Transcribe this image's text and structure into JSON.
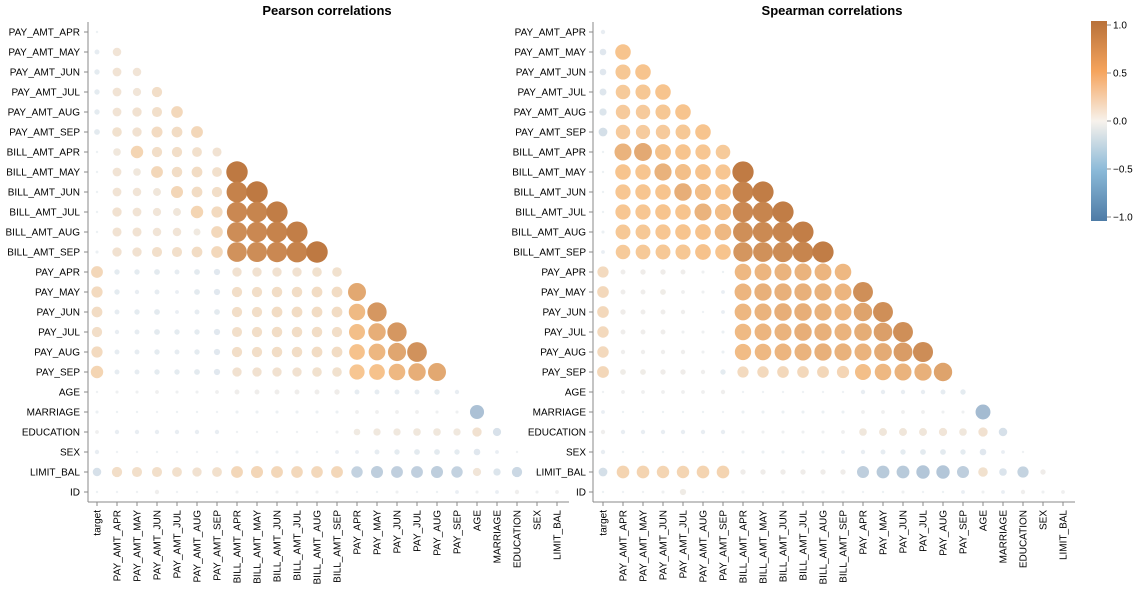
{
  "chart_data": {
    "type": "heatmap",
    "variables": [
      "target",
      "PAY_AMT_APR",
      "PAY_AMT_MAY",
      "PAY_AMT_JUN",
      "PAY_AMT_JUL",
      "PAY_AMT_AUG",
      "PAY_AMT_SEP",
      "BILL_AMT_APR",
      "BILL_AMT_MAY",
      "BILL_AMT_JUN",
      "BILL_AMT_JUL",
      "BILL_AMT_AUG",
      "BILL_AMT_SEP",
      "PAY_APR",
      "PAY_MAY",
      "PAY_JUN",
      "PAY_JUL",
      "PAY_AUG",
      "PAY_SEP",
      "AGE",
      "MARRIAGE",
      "EDUCATION",
      "SEX",
      "LIMIT_BAL",
      "ID"
    ],
    "y_order_top_to_bottom": [
      "PAY_AMT_APR",
      "PAY_AMT_MAY",
      "PAY_AMT_JUN",
      "PAY_AMT_JUL",
      "PAY_AMT_AUG",
      "PAY_AMT_SEP",
      "BILL_AMT_APR",
      "BILL_AMT_MAY",
      "BILL_AMT_JUN",
      "BILL_AMT_JUL",
      "BILL_AMT_AUG",
      "BILL_AMT_SEP",
      "PAY_APR",
      "PAY_MAY",
      "PAY_JUN",
      "PAY_JUL",
      "PAY_AUG",
      "PAY_SEP",
      "AGE",
      "MARRIAGE",
      "EDUCATION",
      "SEX",
      "LIMIT_BAL",
      "ID"
    ],
    "x_order_left_to_right": [
      "target",
      "PAY_AMT_APR",
      "PAY_AMT_MAY",
      "PAY_AMT_JUN",
      "PAY_AMT_JUL",
      "PAY_AMT_AUG",
      "PAY_AMT_SEP",
      "BILL_AMT_APR",
      "BILL_AMT_MAY",
      "BILL_AMT_JUN",
      "BILL_AMT_JUL",
      "BILL_AMT_AUG",
      "BILL_AMT_SEP",
      "PAY_APR",
      "PAY_MAY",
      "PAY_JUN",
      "PAY_JUL",
      "PAY_AUG",
      "PAY_SEP",
      "AGE",
      "MARRIAGE",
      "EDUCATION",
      "SEX",
      "LIMIT_BAL"
    ],
    "value_range": [
      -1,
      1
    ],
    "colorbar_ticks": [
      "1.0",
      "0.5",
      "0.0",
      "−0.5",
      "−1.0"
    ],
    "colorscale": [
      "#4e7ba6",
      "#e8f1f8",
      "#f5a35c",
      "#b8713a"
    ],
    "panels": [
      {
        "title": "Pearson correlations",
        "rows": [
          [
            -0.01
          ],
          [
            -0.05,
            0.15
          ],
          [
            -0.06,
            0.16,
            0.15
          ],
          [
            -0.06,
            0.16,
            0.14,
            0.22
          ],
          [
            -0.06,
            0.16,
            0.18,
            0.21,
            0.28
          ],
          [
            -0.07,
            0.19,
            0.18,
            0.25,
            0.24,
            0.29
          ],
          [
            -0.01,
            0.12,
            0.32,
            0.22,
            0.22,
            0.2,
            0.17
          ],
          [
            -0.01,
            0.16,
            0.12,
            0.29,
            0.23,
            0.24,
            0.2,
            0.95
          ],
          [
            -0.01,
            0.16,
            0.15,
            0.13,
            0.3,
            0.24,
            0.22,
            0.9,
            0.95
          ],
          [
            -0.01,
            0.18,
            0.16,
            0.14,
            0.13,
            0.32,
            0.26,
            0.86,
            0.88,
            0.93
          ],
          [
            -0.01,
            0.17,
            0.17,
            0.15,
            0.15,
            0.1,
            0.28,
            0.83,
            0.86,
            0.89,
            0.92
          ],
          [
            -0.02,
            0.18,
            0.18,
            0.21,
            0.21,
            0.24,
            0.28,
            0.8,
            0.83,
            0.86,
            0.89,
            0.95
          ],
          [
            0.29,
            -0.06,
            -0.06,
            -0.07,
            -0.05,
            -0.07,
            -0.08,
            0.18,
            0.18,
            0.18,
            0.18,
            0.19,
            0.19
          ],
          [
            0.26,
            -0.06,
            -0.04,
            -0.05,
            -0.03,
            -0.07,
            -0.08,
            0.22,
            0.22,
            0.23,
            0.23,
            0.24,
            0.24,
            0.67
          ],
          [
            0.24,
            -0.05,
            -0.06,
            -0.07,
            -0.03,
            -0.05,
            -0.07,
            0.22,
            0.22,
            0.24,
            0.24,
            0.24,
            0.24,
            0.56,
            0.77
          ],
          [
            0.22,
            -0.04,
            -0.05,
            -0.07,
            -0.06,
            -0.06,
            -0.08,
            0.21,
            0.22,
            0.23,
            0.23,
            0.23,
            0.22,
            0.53,
            0.63,
            0.77
          ],
          [
            0.26,
            -0.05,
            -0.05,
            -0.06,
            -0.05,
            -0.06,
            -0.08,
            0.22,
            0.22,
            0.23,
            0.23,
            0.24,
            0.24,
            0.51,
            0.58,
            0.68,
            0.8
          ],
          [
            0.32,
            -0.05,
            -0.05,
            -0.06,
            -0.06,
            -0.07,
            -0.08,
            0.18,
            0.18,
            0.18,
            0.18,
            0.19,
            0.19,
            0.48,
            0.51,
            0.57,
            0.63,
            0.67
          ],
          [
            0.01,
            0.02,
            0.02,
            0.03,
            0.02,
            0.02,
            0.03,
            0.05,
            0.05,
            0.05,
            0.05,
            0.05,
            0.06,
            -0.05,
            -0.05,
            -0.05,
            -0.05,
            -0.06,
            -0.04
          ],
          [
            -0.02,
            -0.01,
            -0.01,
            -0.0,
            -0.01,
            -0.01,
            -0.0,
            -0.02,
            -0.02,
            -0.02,
            -0.02,
            -0.02,
            -0.02,
            0.03,
            0.03,
            0.03,
            0.03,
            0.02,
            0.02,
            -0.41
          ],
          [
            0.03,
            -0.04,
            -0.04,
            -0.04,
            -0.04,
            -0.04,
            -0.04,
            0.01,
            0.01,
            0.01,
            0.01,
            0.01,
            0.02,
            0.09,
            0.11,
            0.11,
            0.12,
            0.12,
            0.11,
            0.18,
            -0.14
          ],
          [
            -0.04,
            -0.0,
            -0.0,
            -0.01,
            -0.0,
            -0.0,
            -0.0,
            -0.02,
            -0.02,
            -0.02,
            -0.02,
            -0.01,
            -0.03,
            -0.03,
            -0.05,
            -0.06,
            -0.07,
            -0.07,
            -0.06,
            -0.09,
            -0.03,
            0.01
          ],
          [
            -0.15,
            0.22,
            0.21,
            0.21,
            0.2,
            0.18,
            0.2,
            0.29,
            0.3,
            0.29,
            0.28,
            0.28,
            0.29,
            -0.27,
            -0.3,
            -0.29,
            -0.29,
            -0.3,
            -0.27,
            0.14,
            -0.11,
            -0.22,
            0.02
          ],
          [
            -0.01,
            0.0,
            0.01,
            0.04,
            0.0,
            0.01,
            0.01,
            0.02,
            0.01,
            0.02,
            0.02,
            0.02,
            0.02,
            -0.0,
            -0.01,
            0.02,
            -0.0,
            -0.01,
            -0.03,
            0.02,
            -0.03,
            0.04,
            0.02,
            0.03
          ]
        ]
      },
      {
        "title": "Spearman correlations",
        "rows": [
          [
            -0.04
          ],
          [
            -0.09,
            0.5
          ],
          [
            -0.09,
            0.47,
            0.5
          ],
          [
            -0.1,
            0.44,
            0.47,
            0.5
          ],
          [
            -0.11,
            0.43,
            0.43,
            0.47,
            0.5
          ],
          [
            -0.16,
            0.43,
            0.42,
            0.43,
            0.46,
            0.5
          ],
          [
            -0.01,
            0.6,
            0.66,
            0.52,
            0.5,
            0.48,
            0.44
          ],
          [
            -0.01,
            0.5,
            0.49,
            0.61,
            0.53,
            0.51,
            0.48,
            0.94
          ],
          [
            -0.01,
            0.48,
            0.49,
            0.5,
            0.63,
            0.54,
            0.51,
            0.89,
            0.93
          ],
          [
            -0.01,
            0.48,
            0.48,
            0.5,
            0.5,
            0.6,
            0.54,
            0.86,
            0.88,
            0.93
          ],
          [
            -0.02,
            0.46,
            0.46,
            0.48,
            0.5,
            0.51,
            0.57,
            0.82,
            0.85,
            0.88,
            0.92
          ],
          [
            -0.03,
            0.44,
            0.45,
            0.46,
            0.47,
            0.51,
            0.5,
            0.78,
            0.81,
            0.84,
            0.88,
            0.93
          ],
          [
            0.26,
            0.05,
            0.06,
            0.06,
            0.05,
            0.02,
            -0.01,
            0.57,
            0.59,
            0.6,
            0.6,
            0.59,
            0.57
          ],
          [
            0.28,
            0.05,
            0.05,
            0.07,
            0.03,
            0.02,
            -0.03,
            0.59,
            0.62,
            0.62,
            0.62,
            0.61,
            0.59,
            0.82
          ],
          [
            0.28,
            0.06,
            0.05,
            0.05,
            0.04,
            0.0,
            -0.03,
            0.58,
            0.6,
            0.63,
            0.63,
            0.61,
            0.59,
            0.7,
            0.82
          ],
          [
            0.27,
            0.05,
            0.05,
            0.05,
            0.02,
            0.02,
            -0.02,
            0.56,
            0.59,
            0.6,
            0.63,
            0.62,
            0.6,
            0.64,
            0.72,
            0.82
          ],
          [
            0.27,
            0.04,
            0.04,
            0.04,
            0.04,
            0.02,
            -0.02,
            0.55,
            0.57,
            0.59,
            0.6,
            0.62,
            0.61,
            0.6,
            0.65,
            0.74,
            0.83
          ],
          [
            0.29,
            0.07,
            0.07,
            0.06,
            0.06,
            0.04,
            -0.06,
            0.26,
            0.27,
            0.28,
            0.28,
            0.29,
            0.31,
            0.53,
            0.57,
            0.6,
            0.62,
            0.7
          ],
          [
            0.01,
            0.03,
            0.03,
            0.03,
            0.03,
            0.03,
            0.04,
            0.0,
            0.0,
            0.0,
            0.0,
            0.0,
            0.0,
            -0.04,
            -0.04,
            -0.04,
            -0.04,
            -0.05,
            -0.06
          ],
          [
            -0.03,
            -0.01,
            -0.01,
            -0.01,
            -0.01,
            -0.01,
            -0.0,
            -0.02,
            -0.02,
            -0.02,
            -0.02,
            -0.02,
            -0.02,
            0.03,
            0.03,
            0.03,
            0.03,
            0.02,
            0.02,
            -0.46
          ],
          [
            0.04,
            -0.04,
            -0.04,
            -0.04,
            -0.04,
            -0.04,
            -0.04,
            0.02,
            0.02,
            0.02,
            0.02,
            0.02,
            0.03,
            0.12,
            0.13,
            0.13,
            0.13,
            0.14,
            0.12,
            0.18,
            -0.15
          ],
          [
            -0.04,
            -0.01,
            -0.01,
            -0.01,
            -0.0,
            -0.0,
            0.0,
            -0.02,
            -0.02,
            -0.02,
            -0.02,
            -0.02,
            -0.03,
            -0.04,
            -0.05,
            -0.06,
            -0.07,
            -0.07,
            -0.06,
            -0.09,
            -0.03,
            0.01
          ],
          [
            -0.16,
            0.33,
            0.33,
            0.32,
            0.32,
            0.33,
            0.33,
            0.06,
            0.06,
            0.06,
            0.06,
            0.06,
            0.06,
            -0.3,
            -0.34,
            -0.34,
            -0.37,
            -0.37,
            -0.3,
            0.19,
            -0.12,
            -0.26,
            0.06
          ],
          [
            -0.01,
            0.0,
            0.01,
            0.02,
            0.08,
            0.0,
            0.01,
            0.02,
            0.01,
            0.02,
            0.02,
            0.02,
            0.02,
            -0.0,
            -0.01,
            0.02,
            -0.0,
            -0.01,
            -0.03,
            0.02,
            -0.03,
            0.04,
            0.02,
            0.03
          ]
        ]
      }
    ]
  }
}
